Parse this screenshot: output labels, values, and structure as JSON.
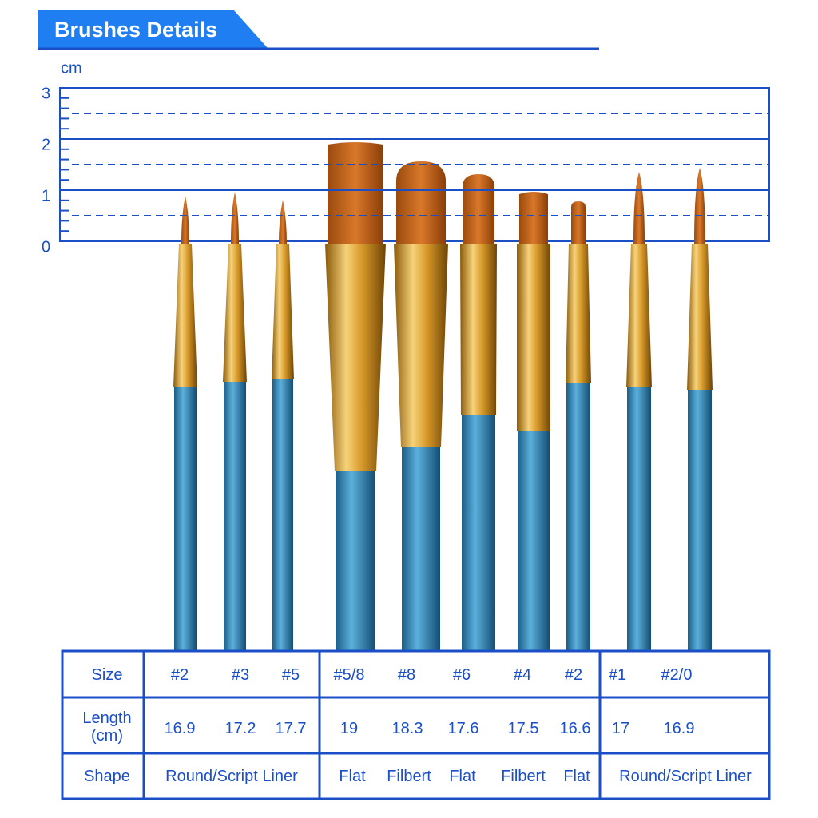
{
  "header": {
    "title": "Brushes Details"
  },
  "ruler": {
    "unit": "cm",
    "ticks": [
      0,
      1,
      2,
      3
    ]
  },
  "table": {
    "row_headers": [
      "Size",
      "Length (cm)",
      "Shape"
    ],
    "size": [
      "#2",
      "#3",
      "#5",
      "#5/8",
      "#8",
      "#6",
      "#4",
      "#2",
      "#1",
      "#2/0"
    ],
    "length": [
      16.9,
      17.2,
      17.7,
      19,
      18.3,
      17.6,
      17.5,
      16.6,
      17,
      16.9
    ],
    "shape": [
      "Round/Script Liner",
      "Flat",
      "Filbert",
      "Flat",
      "Filbert",
      "Flat",
      "Round/Script Liner"
    ]
  }
}
